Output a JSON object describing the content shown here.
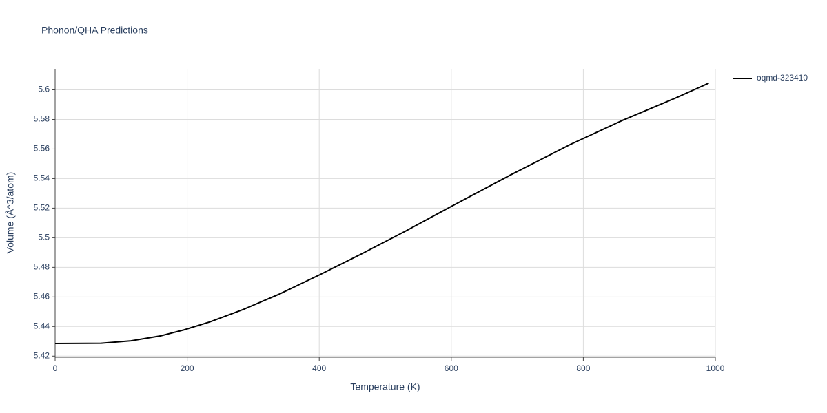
{
  "chart_data": {
    "type": "line",
    "title": "Phonon/QHA Predictions",
    "x_label": "Temperature (K)",
    "y_label": "Volume (Å^3/atom)",
    "x": [
      0,
      70,
      115,
      160,
      195,
      235,
      285,
      340,
      400,
      465,
      530,
      600,
      690,
      780,
      860,
      940,
      990
    ],
    "series": [
      {
        "name": "oqmd-323410",
        "color": "#000000",
        "values": [
          5.4285,
          5.4287,
          5.4303,
          5.4337,
          5.4377,
          5.4432,
          5.4515,
          5.462,
          5.4748,
          5.4893,
          5.5043,
          5.5212,
          5.5425,
          5.563,
          5.5795,
          5.5945,
          5.6045
        ]
      }
    ],
    "xlim": [
      0,
      1000
    ],
    "xticks": [
      0,
      200,
      400,
      600,
      800,
      1000
    ],
    "ylim": [
      5.4192,
      5.6142
    ],
    "yticks": [
      5.42,
      5.44,
      5.46,
      5.48,
      5.5,
      5.52,
      5.54,
      5.56,
      5.58,
      5.6
    ],
    "grid": true,
    "legend": "right"
  }
}
